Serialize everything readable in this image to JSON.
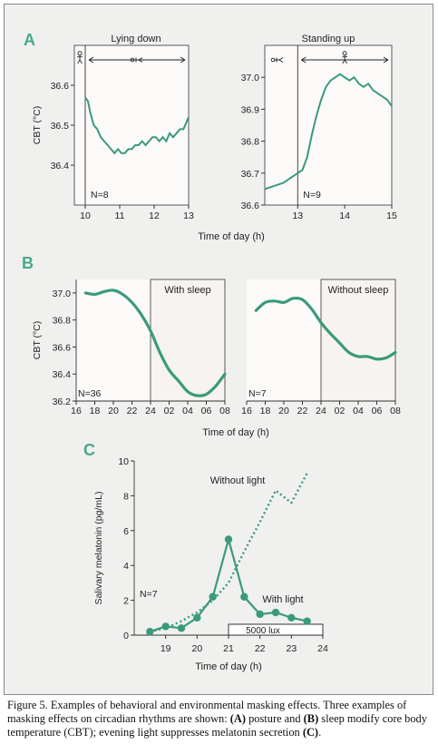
{
  "colors": {
    "accent": "#3a9a7a",
    "panel_letter": "#4aa88a",
    "shade": "#f7f3f1",
    "frame_bg": "#f0f0ef",
    "text": "#222222"
  },
  "caption": {
    "prefix": "Figure 5. Examples of behavioral and environmental masking effects. Three examples of masking effects on circadian rhythms are shown: ",
    "a_label": "(A)",
    "mid1": " posture and ",
    "b_label": "(B)",
    "mid2": " sleep modify core body temperature (CBT); evening light suppresses melatonin secretion ",
    "c_label": "(C)",
    "end": "."
  },
  "chart_data": [
    {
      "id": "A-left",
      "panel_label": "A",
      "type": "line",
      "title": "Lying down",
      "ylabel": "CBT (°C)",
      "xlabel": "Time of day (h)",
      "xlim": [
        10,
        13
      ],
      "ylim": [
        36.3,
        36.7
      ],
      "xticks": [
        10,
        11,
        12,
        13
      ],
      "yticks": [
        36.4,
        36.5,
        36.6
      ],
      "ytick_labels": [
        "36.4",
        "36.5",
        "36.6"
      ],
      "n_label": "N=8",
      "series": [
        {
          "x": [
            10,
            10.08,
            10.15,
            10.25,
            10.35,
            10.45,
            10.55,
            10.65,
            10.75,
            10.85,
            10.95,
            11.05,
            11.15,
            11.25,
            11.35,
            11.45,
            11.55,
            11.65,
            11.75,
            11.85,
            11.95,
            12.05,
            12.15,
            12.25,
            12.35,
            12.45,
            12.55,
            12.65,
            12.75,
            12.85,
            12.95,
            13
          ],
          "y": [
            36.57,
            36.56,
            36.53,
            36.5,
            36.49,
            36.47,
            36.46,
            36.45,
            36.44,
            36.43,
            36.44,
            36.43,
            36.43,
            36.44,
            36.44,
            36.45,
            36.45,
            36.46,
            36.45,
            36.46,
            36.47,
            36.47,
            36.46,
            36.47,
            36.46,
            36.48,
            36.47,
            36.48,
            36.49,
            36.49,
            36.51,
            36.52
          ]
        }
      ],
      "annotations": [
        "stick-figure standing at 10:00",
        "arrow 10:00 to 13:00 with lying figure"
      ]
    },
    {
      "id": "A-right",
      "type": "line",
      "title": "Standing up",
      "xlabel": "Time of day (h)",
      "xlim": [
        12.3,
        15
      ],
      "ylim": [
        36.6,
        37.1
      ],
      "xticks": [
        13,
        14,
        15
      ],
      "yticks": [
        36.6,
        36.7,
        36.8,
        36.9,
        37.0
      ],
      "ytick_labels": [
        "36.6",
        "36.7",
        "36.8",
        "36.9",
        "37.0"
      ],
      "n_label": "N=9",
      "series": [
        {
          "x": [
            12.3,
            12.5,
            12.7,
            12.9,
            13,
            13.1,
            13.2,
            13.3,
            13.4,
            13.5,
            13.6,
            13.7,
            13.8,
            13.9,
            14,
            14.1,
            14.2,
            14.3,
            14.4,
            14.5,
            14.6,
            14.7,
            14.8,
            14.9,
            15
          ],
          "y": [
            36.65,
            36.66,
            36.67,
            36.69,
            36.7,
            36.71,
            36.75,
            36.82,
            36.88,
            36.93,
            36.97,
            36.99,
            37.0,
            37.01,
            37.0,
            36.99,
            37.0,
            36.98,
            36.97,
            36.98,
            36.96,
            36.95,
            36.94,
            36.93,
            36.91
          ]
        }
      ],
      "annotations": [
        "lying figure before 13:00",
        "arrow 13:00 to 15:00 with standing figure"
      ]
    },
    {
      "id": "B-left",
      "panel_label": "B",
      "type": "line",
      "ylabel": "CBT (°C)",
      "xlabel": "Time of day (h)",
      "xlim": [
        16,
        32
      ],
      "ylim": [
        36.2,
        37.1
      ],
      "xtick_labels": [
        "16",
        "18",
        "20",
        "22",
        "24",
        "02",
        "04",
        "06",
        "08"
      ],
      "yticks": [
        36.2,
        36.4,
        36.6,
        36.8,
        37.0
      ],
      "ytick_labels": [
        "36.2",
        "36.4",
        "36.6",
        "36.8",
        "37.0"
      ],
      "shaded_region": {
        "label": "With sleep",
        "x": [
          24,
          32
        ]
      },
      "n_label": "N=36",
      "series": [
        {
          "x": [
            17,
            18,
            19,
            20,
            21,
            22,
            23,
            24,
            25,
            26,
            27,
            28,
            29,
            30,
            31,
            32
          ],
          "y": [
            37.0,
            36.99,
            37.01,
            37.02,
            36.99,
            36.93,
            36.84,
            36.72,
            36.56,
            36.43,
            36.35,
            36.27,
            36.24,
            36.25,
            36.31,
            36.4
          ]
        }
      ]
    },
    {
      "id": "B-right",
      "type": "line",
      "xlabel": "Time of day (h)",
      "xlim": [
        16,
        32
      ],
      "ylim": [
        36.2,
        37.1
      ],
      "xtick_labels": [
        "16",
        "18",
        "20",
        "22",
        "24",
        "02",
        "04",
        "06",
        "08"
      ],
      "shaded_region": {
        "label": "Without sleep",
        "x": [
          24,
          32
        ]
      },
      "n_label": "N=7",
      "series": [
        {
          "x": [
            17,
            18,
            19,
            20,
            21,
            22,
            23,
            24,
            25,
            26,
            27,
            28,
            29,
            30,
            31,
            32
          ],
          "y": [
            36.87,
            36.93,
            36.94,
            36.93,
            36.96,
            36.95,
            36.88,
            36.78,
            36.7,
            36.63,
            36.56,
            36.53,
            36.53,
            36.51,
            36.52,
            36.56
          ]
        }
      ]
    },
    {
      "id": "C",
      "panel_label": "C",
      "type": "line",
      "ylabel": "Salivary melatonin (pg/mL)",
      "xlabel": "Time of day (h)",
      "xlim": [
        18,
        24
      ],
      "ylim": [
        0,
        10
      ],
      "xticks": [
        19,
        20,
        21,
        22,
        23,
        24
      ],
      "yticks": [
        0,
        2,
        4,
        6,
        8,
        10
      ],
      "n_label": "N=7",
      "light_box": {
        "label": "5000 lux",
        "x": [
          21,
          24
        ]
      },
      "series": [
        {
          "name": "With light",
          "style": "solid-markers",
          "x": [
            18.5,
            19,
            19.5,
            20,
            20.5,
            21,
            21.5,
            22,
            22.5,
            23,
            23.5
          ],
          "y": [
            0.2,
            0.5,
            0.4,
            1.0,
            2.2,
            5.5,
            2.2,
            1.2,
            1.3,
            1.0,
            0.8
          ]
        },
        {
          "name": "Without light",
          "style": "dotted",
          "x": [
            18.5,
            19,
            19.5,
            20,
            20.5,
            21,
            21.5,
            22,
            22.5,
            23,
            23.5
          ],
          "y": [
            0.2,
            0.4,
            0.8,
            1.3,
            2.0,
            3.0,
            4.8,
            6.5,
            8.3,
            7.6,
            9.3
          ]
        }
      ]
    }
  ]
}
